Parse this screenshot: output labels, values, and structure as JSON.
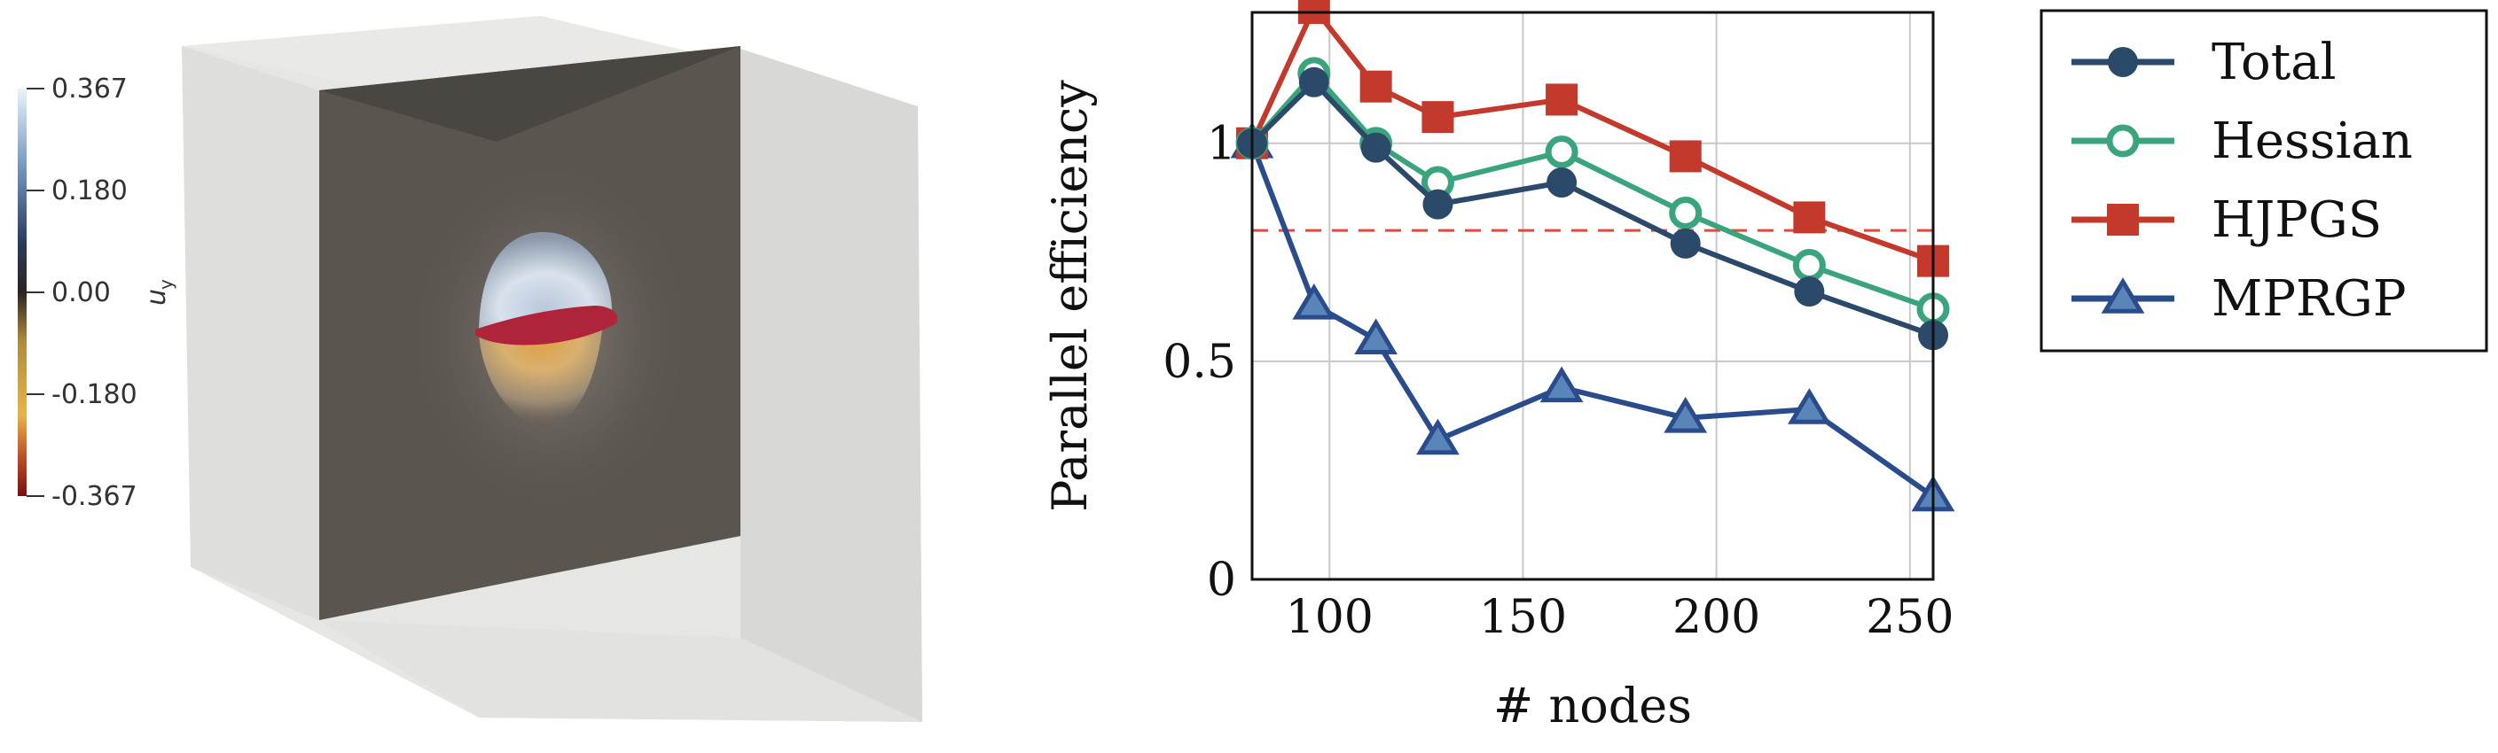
{
  "colorbar": {
    "label": "u",
    "label_sub": "y",
    "ticks": [
      "0.367",
      "0.180",
      "0.00",
      "-0.180",
      "-0.367"
    ],
    "tick_values": [
      0.367,
      0.18,
      0.0,
      -0.18,
      -0.367
    ]
  },
  "chart_data": {
    "type": "line",
    "title": "",
    "xlabel": "# nodes",
    "ylabel": "Parallel efficiency",
    "xlim": [
      80,
      256
    ],
    "ylim": [
      0,
      1.3
    ],
    "xticks": [
      100,
      150,
      200,
      250
    ],
    "xtick_labels": [
      "100",
      "150",
      "200",
      "250"
    ],
    "yticks": [
      0,
      0.5,
      1
    ],
    "ytick_labels": [
      "0",
      "0.5",
      "1"
    ],
    "grid": true,
    "legend_position": "outside-right",
    "reference_line": {
      "y": 0.8,
      "style": "dashed",
      "color": "#e8453c"
    },
    "x": [
      80,
      96,
      112,
      128,
      160,
      192,
      224,
      256
    ],
    "series": [
      {
        "name": "Total",
        "color": "#2b4a69",
        "marker": "filled-circle",
        "values": [
          1.0,
          1.14,
          0.99,
          0.86,
          0.91,
          0.77,
          0.66,
          0.56
        ]
      },
      {
        "name": "Hessian",
        "color": "#3aa57c",
        "marker": "open-circle",
        "values": [
          1.0,
          1.16,
          1.0,
          0.91,
          0.98,
          0.84,
          0.72,
          0.62
        ]
      },
      {
        "name": "HJPGS",
        "color": "#c33a2c",
        "marker": "square",
        "values": [
          1.0,
          1.31,
          1.13,
          1.06,
          1.1,
          0.97,
          0.83,
          0.73
        ]
      },
      {
        "name": "MPRGP",
        "color": "#2a4c8c",
        "marker": "triangle",
        "values": [
          1.0,
          0.63,
          0.55,
          0.32,
          0.44,
          0.37,
          0.39,
          0.19
        ]
      }
    ]
  }
}
